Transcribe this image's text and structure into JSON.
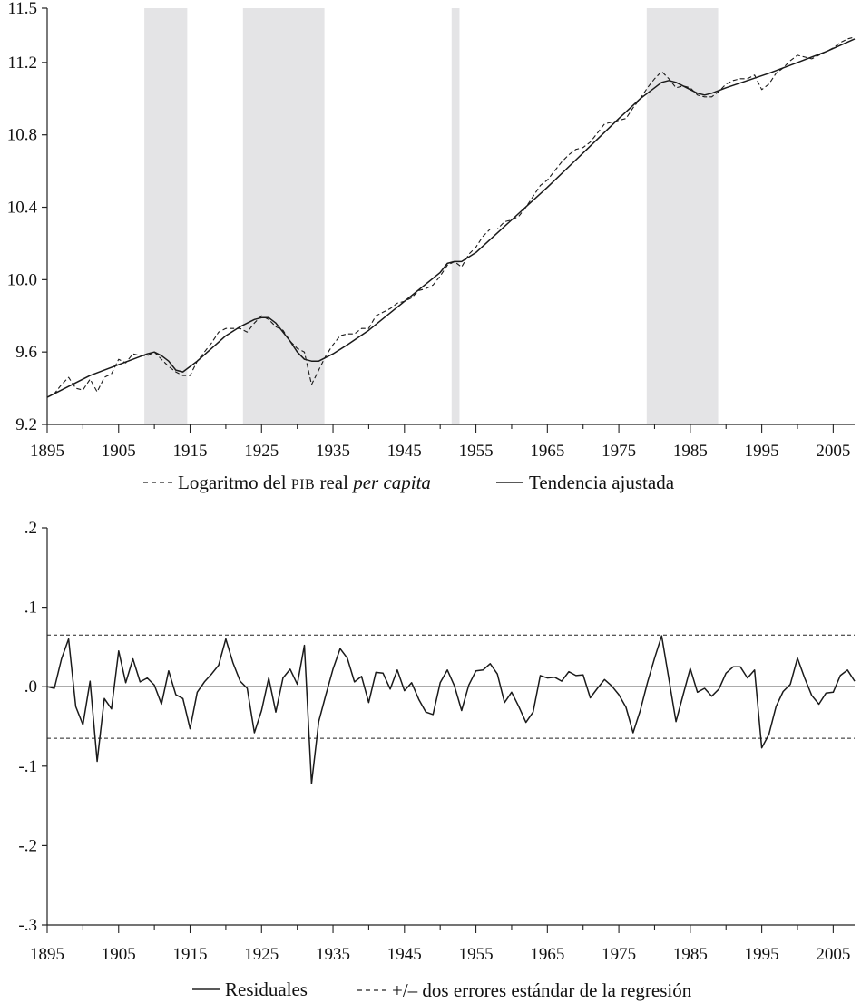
{
  "chart_data": [
    {
      "type": "line",
      "xlabel": "",
      "ylabel": "",
      "xlim": [
        1895,
        2008
      ],
      "ylim": [
        9.2,
        11.5
      ],
      "x_ticks": [
        1895,
        1905,
        1915,
        1925,
        1935,
        1945,
        1955,
        1965,
        1975,
        1985,
        1995,
        2005
      ],
      "x_tick_labels": [
        "1895",
        "1905",
        "1915",
        "1925",
        "1935",
        "1945",
        "1955",
        "1965",
        "1975",
        "1985",
        "1995",
        "2005"
      ],
      "y_ticks": [
        9.2,
        9.6,
        10.0,
        10.4,
        10.8,
        11.2,
        11.5
      ],
      "y_tick_labels": [
        "9.2",
        "9.6",
        "10.0",
        "10.4",
        "10.8",
        "11.2",
        "11.5"
      ],
      "shaded_periods": [
        [
          1908.6,
          1914.6
        ],
        [
          1922.4,
          1933.8
        ],
        [
          1951.6,
          1952.7
        ],
        [
          1978.9,
          1988.9
        ]
      ],
      "series": [
        {
          "name": "Logaritmo del PIB real per capita",
          "style": "dashed",
          "x": [
            1895,
            1896,
            1897,
            1898,
            1899,
            1900,
            1901,
            1902,
            1903,
            1904,
            1905,
            1906,
            1907,
            1908,
            1909,
            1910,
            1911,
            1912,
            1913,
            1914,
            1915,
            1916,
            1917,
            1918,
            1919,
            1920,
            1921,
            1922,
            1923,
            1924,
            1925,
            1926,
            1927,
            1928,
            1929,
            1930,
            1931,
            1932,
            1933,
            1934,
            1935,
            1936,
            1937,
            1938,
            1939,
            1940,
            1941,
            1942,
            1943,
            1944,
            1945,
            1946,
            1947,
            1948,
            1949,
            1950,
            1951,
            1952,
            1953,
            1954,
            1955,
            1956,
            1957,
            1958,
            1959,
            1960,
            1961,
            1962,
            1963,
            1964,
            1965,
            1966,
            1967,
            1968,
            1969,
            1970,
            1971,
            1972,
            1973,
            1974,
            1975,
            1976,
            1977,
            1978,
            1979,
            1980,
            1981,
            1982,
            1983,
            1984,
            1985,
            1986,
            1987,
            1988,
            1989,
            1990,
            1991,
            1992,
            1993,
            1994,
            1995,
            1996,
            1997,
            1998,
            1999,
            2000,
            2001,
            2002,
            2003,
            2004,
            2005,
            2006,
            2007,
            2008
          ],
          "values": [
            9.35,
            9.37,
            9.42,
            9.46,
            9.4,
            9.39,
            9.45,
            9.38,
            9.46,
            9.48,
            9.56,
            9.54,
            9.59,
            9.58,
            9.58,
            9.6,
            9.56,
            9.52,
            9.49,
            9.47,
            9.47,
            9.55,
            9.6,
            9.65,
            9.71,
            9.73,
            9.73,
            9.73,
            9.71,
            9.76,
            9.8,
            9.78,
            9.74,
            9.72,
            9.66,
            9.62,
            9.6,
            9.42,
            9.5,
            9.58,
            9.64,
            9.69,
            9.7,
            9.7,
            9.73,
            9.73,
            9.8,
            9.82,
            9.84,
            9.87,
            9.88,
            9.9,
            9.94,
            9.95,
            9.97,
            10.02,
            10.08,
            10.1,
            10.07,
            10.14,
            10.18,
            10.24,
            10.28,
            10.28,
            10.32,
            10.33,
            10.35,
            10.4,
            10.46,
            10.52,
            10.55,
            10.6,
            10.65,
            10.69,
            10.72,
            10.73,
            10.76,
            10.81,
            10.86,
            10.87,
            10.88,
            10.89,
            10.95,
            11.0,
            11.06,
            11.11,
            11.15,
            11.11,
            11.06,
            11.07,
            11.06,
            11.02,
            11.01,
            11.01,
            11.04,
            11.08,
            11.1,
            11.11,
            11.11,
            11.13,
            11.05,
            11.08,
            11.14,
            11.17,
            11.21,
            11.24,
            11.23,
            11.22,
            11.24,
            11.26,
            11.28,
            11.31,
            11.33,
            11.34
          ]
        },
        {
          "name": "Tendencia ajustada",
          "style": "solid",
          "x": [
            1895,
            1897,
            1899,
            1901,
            1903,
            1905,
            1907,
            1909,
            1910,
            1911,
            1912,
            1913,
            1914,
            1916,
            1918,
            1920,
            1922,
            1924,
            1925,
            1926,
            1927,
            1928,
            1929,
            1930,
            1931,
            1932,
            1933,
            1935,
            1937,
            1940,
            1945,
            1950,
            1951,
            1952,
            1953,
            1955,
            1960,
            1965,
            1970,
            1975,
            1978,
            1980,
            1981,
            1982,
            1983,
            1984,
            1985,
            1986,
            1987,
            1988,
            1990,
            1993,
            1996,
            2000,
            2004,
            2008
          ],
          "values": [
            9.35,
            9.39,
            9.43,
            9.47,
            9.5,
            9.53,
            9.56,
            9.59,
            9.6,
            9.58,
            9.55,
            9.5,
            9.49,
            9.55,
            9.62,
            9.69,
            9.74,
            9.78,
            9.79,
            9.79,
            9.76,
            9.71,
            9.66,
            9.6,
            9.56,
            9.55,
            9.55,
            9.59,
            9.64,
            9.72,
            9.88,
            10.04,
            10.09,
            10.1,
            10.1,
            10.15,
            10.33,
            10.51,
            10.7,
            10.89,
            11.0,
            11.06,
            11.09,
            11.1,
            11.09,
            11.07,
            11.05,
            11.03,
            11.02,
            11.03,
            11.06,
            11.1,
            11.14,
            11.2,
            11.26,
            11.33
          ]
        }
      ],
      "legend": [
        {
          "symbol": "- - -",
          "parts": [
            {
              "text": "Logaritmo del "
            },
            {
              "text": "PIB",
              "smallcaps": true
            },
            {
              "text": " real "
            },
            {
              "text": "per capita",
              "italic": true
            }
          ]
        },
        {
          "symbol": "——",
          "parts": [
            {
              "text": "Tendencia ajustada"
            }
          ]
        }
      ]
    },
    {
      "type": "line",
      "xlabel": "",
      "ylabel": "",
      "xlim": [
        1895,
        2008
      ],
      "ylim": [
        -0.3,
        0.2
      ],
      "x_ticks": [
        1895,
        1905,
        1915,
        1925,
        1935,
        1945,
        1955,
        1965,
        1975,
        1985,
        1995,
        2005
      ],
      "x_tick_labels": [
        "1895",
        "1905",
        "1915",
        "1925",
        "1935",
        "1945",
        "1955",
        "1965",
        "1975",
        "1985",
        "1995",
        "2005"
      ],
      "y_ticks": [
        -0.3,
        -0.2,
        -0.1,
        0.0,
        0.1,
        0.2
      ],
      "y_tick_labels": [
        "-.3",
        "-.2",
        "-.1",
        ".0",
        ".1",
        ".2"
      ],
      "reference_lines": [
        {
          "name": "+/– dos errores estándar de la regresión",
          "style": "dashed",
          "values": [
            0.065,
            -0.065
          ]
        },
        {
          "name": "cero",
          "style": "solid",
          "values": [
            0.0
          ]
        }
      ],
      "series": [
        {
          "name": "Residuales",
          "style": "solid",
          "x": [
            1895,
            1896,
            1897,
            1898,
            1899,
            1900,
            1901,
            1902,
            1903,
            1904,
            1905,
            1906,
            1907,
            1908,
            1909,
            1910,
            1911,
            1912,
            1913,
            1914,
            1915,
            1916,
            1917,
            1918,
            1919,
            1920,
            1921,
            1922,
            1923,
            1924,
            1925,
            1926,
            1927,
            1928,
            1929,
            1930,
            1931,
            1932,
            1933,
            1934,
            1935,
            1936,
            1937,
            1938,
            1939,
            1940,
            1941,
            1942,
            1943,
            1944,
            1945,
            1946,
            1947,
            1948,
            1949,
            1950,
            1951,
            1952,
            1953,
            1954,
            1955,
            1956,
            1957,
            1958,
            1959,
            1960,
            1961,
            1962,
            1963,
            1964,
            1965,
            1966,
            1967,
            1968,
            1969,
            1970,
            1971,
            1972,
            1973,
            1974,
            1975,
            1976,
            1977,
            1978,
            1979,
            1980,
            1981,
            1982,
            1983,
            1984,
            1985,
            1986,
            1987,
            1988,
            1989,
            1990,
            1991,
            1992,
            1993,
            1994,
            1995,
            1996,
            1997,
            1998,
            1999,
            2000,
            2001,
            2002,
            2003,
            2004,
            2005,
            2006,
            2007,
            2008
          ],
          "values": [
            0.0,
            -0.002,
            0.035,
            0.06,
            -0.025,
            -0.048,
            0.007,
            -0.094,
            -0.015,
            -0.028,
            0.045,
            0.005,
            0.035,
            0.006,
            0.011,
            0.002,
            -0.022,
            0.02,
            -0.01,
            -0.015,
            -0.053,
            -0.007,
            0.006,
            0.016,
            0.027,
            0.06,
            0.03,
            0.007,
            -0.002,
            -0.058,
            -0.03,
            0.011,
            -0.032,
            0.011,
            0.022,
            0.003,
            0.052,
            -0.122,
            -0.044,
            -0.01,
            0.022,
            0.048,
            0.036,
            0.006,
            0.013,
            -0.02,
            0.018,
            0.017,
            -0.003,
            0.021,
            -0.005,
            0.005,
            -0.016,
            -0.032,
            -0.035,
            0.005,
            0.021,
            0.001,
            -0.03,
            0.002,
            0.02,
            0.021,
            0.029,
            0.016,
            -0.02,
            -0.007,
            -0.025,
            -0.045,
            -0.032,
            0.014,
            0.011,
            0.012,
            0.007,
            0.019,
            0.014,
            0.015,
            -0.014,
            -0.002,
            0.009,
            0.001,
            -0.01,
            -0.026,
            -0.058,
            -0.03,
            0.005,
            0.036,
            0.064,
            0.01,
            -0.044,
            -0.01,
            0.023,
            -0.007,
            -0.002,
            -0.012,
            -0.003,
            0.017,
            0.025,
            0.025,
            0.011,
            0.021,
            -0.077,
            -0.06,
            -0.025,
            -0.006,
            0.003,
            0.036,
            0.011,
            -0.011,
            -0.022,
            -0.008,
            -0.007,
            0.014,
            0.021,
            0.007
          ]
        }
      ],
      "legend": [
        {
          "symbol": "——",
          "parts": [
            {
              "text": "Residuales"
            }
          ]
        },
        {
          "symbol": "- - -",
          "parts": [
            {
              "text": "+/– dos errores estándar de la regresión"
            }
          ]
        }
      ]
    }
  ]
}
